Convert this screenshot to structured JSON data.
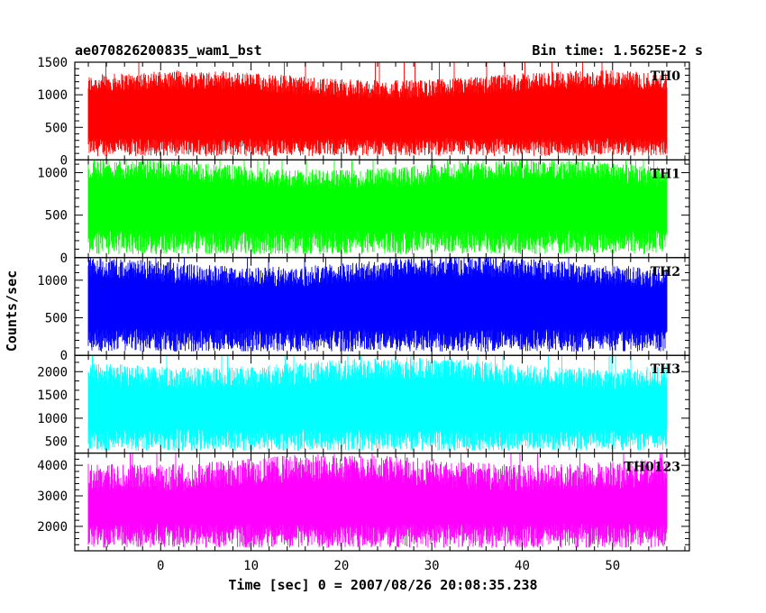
{
  "header": {
    "title": "ae070826200835_wam1_bst",
    "bin_time": "Bin time: 1.5625E-2 s"
  },
  "chart_data": {
    "type": "line",
    "title": "ae070826200835_wam1_bst",
    "subtitle": "Bin time: 1.5625E-2 s",
    "ylabel": "Counts/sec",
    "xlabel": "Time [sec] 0 = 2007/08/26 20:08:35.238",
    "xlim": [
      -9.5,
      58.5
    ],
    "x_ticks": [
      0,
      10,
      20,
      30,
      40,
      50
    ],
    "data_x_range": [
      -8.0,
      56.0
    ],
    "bin_time_sec": 0.015625,
    "grid": false,
    "panels": [
      {
        "name": "TH0",
        "color": "#ff0000",
        "ylim": [
          0,
          1500
        ],
        "y_ticks": [
          0,
          500,
          1000,
          1500
        ],
        "mean": 560,
        "spread": [
          60,
          1300
        ],
        "peak": 1500
      },
      {
        "name": "TH1",
        "color": "#00ff00",
        "ylim": [
          0,
          1150
        ],
        "y_ticks": [
          0,
          500,
          1000
        ],
        "mean": 560,
        "spread": [
          40,
          1100
        ],
        "peak": 1150
      },
      {
        "name": "TH2",
        "color": "#0000ff",
        "ylim": [
          0,
          1300
        ],
        "y_ticks": [
          0,
          500,
          1000
        ],
        "mean": 600,
        "spread": [
          50,
          1250
        ],
        "peak": 1300
      },
      {
        "name": "TH3",
        "color": "#00ffff",
        "ylim": [
          250,
          2350
        ],
        "y_ticks": [
          500,
          1000,
          1500,
          2000
        ],
        "mean": 1150,
        "spread": [
          300,
          2200
        ],
        "peak": 2350
      },
      {
        "name": "TH0123",
        "color": "#ff00ff",
        "ylim": [
          1200,
          4400
        ],
        "y_ticks": [
          2000,
          3000,
          4000
        ],
        "mean": 2750,
        "spread": [
          1300,
          4200
        ],
        "peak": 4400
      }
    ]
  }
}
